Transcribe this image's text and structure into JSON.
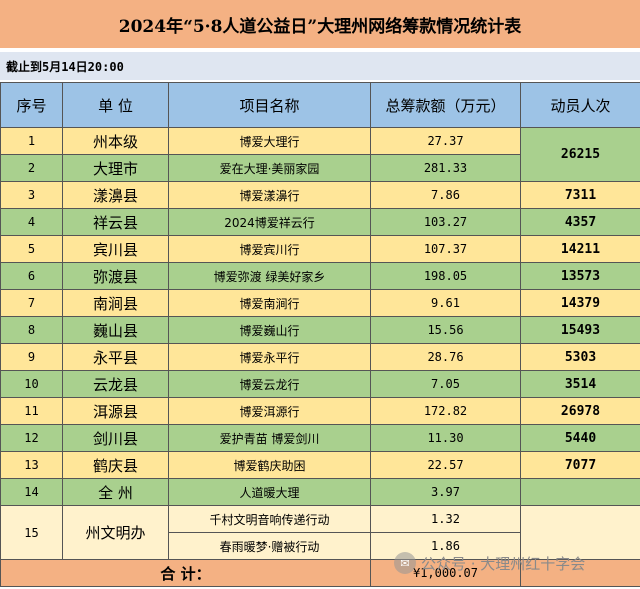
{
  "title": "2024年“5·8人道公益日”大理州网络筹款情况统计表",
  "as_of": "截止到5月14日20:00",
  "headers": [
    "序号",
    "单  位",
    "项目名称",
    "总筹款额（万元）",
    "动员人次"
  ],
  "rows": [
    {
      "no": "1",
      "unit": "州本级",
      "project": "博爱大理行",
      "amount": "27.37"
    },
    {
      "no": "2",
      "unit": "大理市",
      "project": "爱在大理·美丽家园",
      "amount": "281.33"
    },
    {
      "no": "3",
      "unit": "漾濞县",
      "project": "博爱漾濞行",
      "amount": "7.86",
      "people": "7311"
    },
    {
      "no": "4",
      "unit": "祥云县",
      "project": "2024博爱祥云行",
      "amount": "103.27",
      "people": "4357"
    },
    {
      "no": "5",
      "unit": "宾川县",
      "project": "博爱宾川行",
      "amount": "107.37",
      "people": "14211"
    },
    {
      "no": "6",
      "unit": "弥渡县",
      "project": "博爱弥渡  绿美好家乡",
      "amount": "198.05",
      "people": "13573"
    },
    {
      "no": "7",
      "unit": "南涧县",
      "project": "博爱南涧行",
      "amount": "9.61",
      "people": "14379"
    },
    {
      "no": "8",
      "unit": "巍山县",
      "project": "博爱巍山行",
      "amount": "15.56",
      "people": "15493"
    },
    {
      "no": "9",
      "unit": "永平县",
      "project": "博爱永平行",
      "amount": "28.76",
      "people": "5303"
    },
    {
      "no": "10",
      "unit": "云龙县",
      "project": "博爱云龙行",
      "amount": "7.05",
      "people": "3514"
    },
    {
      "no": "11",
      "unit": "洱源县",
      "project": "博爱洱源行",
      "amount": "172.82",
      "people": "26978"
    },
    {
      "no": "12",
      "unit": "剑川县",
      "project": "爱护青苗  博爱剑川",
      "amount": "11.30",
      "people": "5440"
    },
    {
      "no": "13",
      "unit": "鹤庆县",
      "project": "博爱鹤庆助困",
      "amount": "22.57",
      "people": "7077"
    },
    {
      "no": "14",
      "unit": "全  州",
      "project": "人道暖大理",
      "amount": "3.97"
    },
    {
      "no": "15",
      "unit": "州文明办",
      "project": "千村文明音响传递行动",
      "amount": "1.32"
    },
    {
      "no": "",
      "unit": "",
      "project": "春雨暖梦·赠被行动",
      "amount": "1.86"
    }
  ],
  "merged_people_1_2": "26215",
  "total": {
    "label": "合  计：",
    "amount": "¥1,000.07"
  },
  "watermark": {
    "text": "公众号 · 大理州红十字会",
    "icon": "wechat-icon"
  },
  "colors": {
    "title_bg": "#f4b183",
    "header_bg": "#9dc3e6",
    "row_yellow": "#ffe699",
    "row_green": "#a9d08e"
  }
}
